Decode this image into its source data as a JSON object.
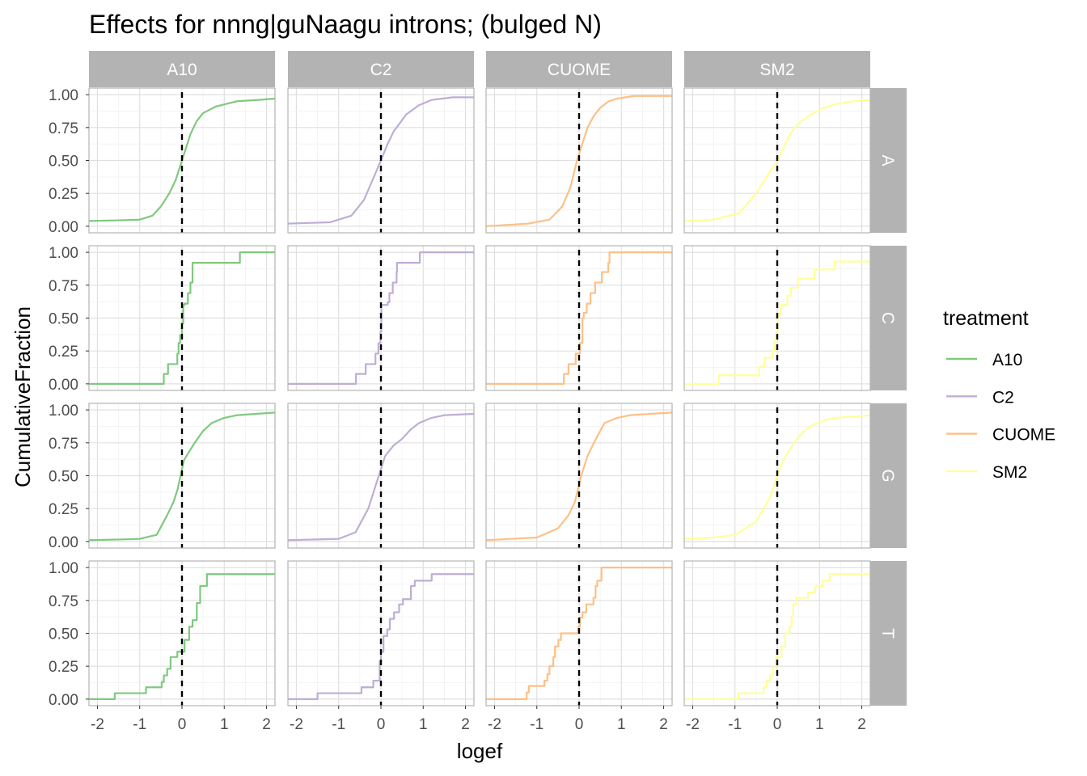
{
  "chart_data": {
    "type": "line",
    "title": "Effects for nnng|guNaagu introns; (bulged N)",
    "xlabel": "logef",
    "ylabel": "CumulativeFraction",
    "xlim": [
      -2.2,
      2.2
    ],
    "ylim": [
      -0.05,
      1.05
    ],
    "x_ticks": [
      -2,
      -1,
      0,
      1,
      2
    ],
    "x_tick_labels": [
      "-2",
      "-1",
      "0",
      "1",
      "2"
    ],
    "y_ticks": [
      0,
      0.25,
      0.5,
      0.75,
      1
    ],
    "y_tick_labels": [
      "0.00",
      "0.25",
      "0.50",
      "0.75",
      "1.00"
    ],
    "grid": true,
    "reference_line": {
      "x": 0,
      "style": "dashed",
      "color": "#000000"
    },
    "facet_columns": [
      "A10",
      "C2",
      "CUOME",
      "SM2"
    ],
    "facet_rows": [
      "A",
      "C",
      "G",
      "T"
    ],
    "legend": {
      "title": "treatment",
      "position": "right",
      "entries": [
        {
          "name": "A10",
          "color": "#7fc97f"
        },
        {
          "name": "C2",
          "color": "#beaed4"
        },
        {
          "name": "CUOME",
          "color": "#fdc086"
        },
        {
          "name": "SM2",
          "color": "#ffff99"
        }
      ]
    },
    "panels": [
      {
        "row": "A",
        "col": "A10",
        "kind": "smooth",
        "points": [
          [
            -2.2,
            0.04
          ],
          [
            -1.5,
            0.045
          ],
          [
            -1,
            0.05
          ],
          [
            -0.7,
            0.08
          ],
          [
            -0.5,
            0.15
          ],
          [
            -0.3,
            0.25
          ],
          [
            -0.15,
            0.35
          ],
          [
            0,
            0.5
          ],
          [
            0.1,
            0.6
          ],
          [
            0.2,
            0.7
          ],
          [
            0.35,
            0.8
          ],
          [
            0.5,
            0.86
          ],
          [
            0.8,
            0.91
          ],
          [
            1.3,
            0.95
          ],
          [
            1.8,
            0.96
          ],
          [
            2.2,
            0.97
          ]
        ]
      },
      {
        "row": "A",
        "col": "C2",
        "kind": "smooth",
        "points": [
          [
            -2.2,
            0.02
          ],
          [
            -1.2,
            0.03
          ],
          [
            -0.7,
            0.08
          ],
          [
            -0.4,
            0.2
          ],
          [
            -0.2,
            0.35
          ],
          [
            0,
            0.5
          ],
          [
            0.15,
            0.62
          ],
          [
            0.3,
            0.72
          ],
          [
            0.6,
            0.85
          ],
          [
            0.9,
            0.92
          ],
          [
            1.2,
            0.96
          ],
          [
            1.7,
            0.98
          ],
          [
            2.2,
            0.98
          ]
        ]
      },
      {
        "row": "A",
        "col": "CUOME",
        "kind": "smooth",
        "points": [
          [
            -2.2,
            0.0
          ],
          [
            -1.2,
            0.02
          ],
          [
            -0.7,
            0.05
          ],
          [
            -0.4,
            0.15
          ],
          [
            -0.2,
            0.3
          ],
          [
            -0.05,
            0.5
          ],
          [
            0.1,
            0.65
          ],
          [
            0.2,
            0.75
          ],
          [
            0.35,
            0.84
          ],
          [
            0.5,
            0.9
          ],
          [
            0.7,
            0.95
          ],
          [
            0.9,
            0.97
          ],
          [
            1.3,
            0.99
          ],
          [
            2.2,
            0.99
          ]
        ]
      },
      {
        "row": "A",
        "col": "SM2",
        "kind": "smooth",
        "points": [
          [
            -2.2,
            0.04
          ],
          [
            -1.5,
            0.05
          ],
          [
            -0.9,
            0.1
          ],
          [
            -0.5,
            0.25
          ],
          [
            -0.2,
            0.4
          ],
          [
            0,
            0.5
          ],
          [
            0.15,
            0.6
          ],
          [
            0.3,
            0.7
          ],
          [
            0.5,
            0.78
          ],
          [
            0.8,
            0.85
          ],
          [
            1.1,
            0.9
          ],
          [
            1.4,
            0.93
          ],
          [
            1.8,
            0.95
          ],
          [
            2.2,
            0.96
          ]
        ]
      },
      {
        "row": "C",
        "col": "A10",
        "kind": "step",
        "points": [
          [
            -2.2,
            0
          ],
          [
            -0.43,
            0.075
          ],
          [
            -0.33,
            0.15
          ],
          [
            -0.11,
            0.23
          ],
          [
            -0.08,
            0.31
          ],
          [
            -0.045,
            0.37
          ],
          [
            0,
            0.46
          ],
          [
            0.03,
            0.6
          ],
          [
            0.06,
            0.61
          ],
          [
            0.14,
            0.69
          ],
          [
            0.2,
            0.77
          ],
          [
            0.25,
            0.92
          ],
          [
            1.37,
            1.0
          ],
          [
            2.2,
            1.0
          ]
        ]
      },
      {
        "row": "C",
        "col": "C2",
        "kind": "step",
        "points": [
          [
            -2.2,
            0
          ],
          [
            -0.59,
            0.075
          ],
          [
            -0.36,
            0.15
          ],
          [
            -0.13,
            0.23
          ],
          [
            -0.06,
            0.31
          ],
          [
            -0.01,
            0.4
          ],
          [
            0.01,
            0.6
          ],
          [
            0.16,
            0.62
          ],
          [
            0.2,
            0.69
          ],
          [
            0.28,
            0.77
          ],
          [
            0.37,
            0.85
          ],
          [
            0.38,
            0.92
          ],
          [
            0.92,
            1.0
          ],
          [
            2.2,
            1.0
          ]
        ]
      },
      {
        "row": "C",
        "col": "CUOME",
        "kind": "step",
        "points": [
          [
            -2.2,
            0
          ],
          [
            -0.36,
            0.075
          ],
          [
            -0.25,
            0.15
          ],
          [
            -0.08,
            0.23
          ],
          [
            0.02,
            0.31
          ],
          [
            0.08,
            0.5
          ],
          [
            0.11,
            0.54
          ],
          [
            0.18,
            0.61
          ],
          [
            0.27,
            0.69
          ],
          [
            0.38,
            0.77
          ],
          [
            0.54,
            0.85
          ],
          [
            0.69,
            0.92
          ],
          [
            0.72,
            1.0
          ],
          [
            2.2,
            1.0
          ]
        ]
      },
      {
        "row": "C",
        "col": "SM2",
        "kind": "step",
        "points": [
          [
            -2.2,
            0
          ],
          [
            -1.38,
            0.065
          ],
          [
            -0.43,
            0.13
          ],
          [
            -0.3,
            0.2
          ],
          [
            -0.11,
            0.25
          ],
          [
            -0.06,
            0.33
          ],
          [
            -0.02,
            0.4
          ],
          [
            0.01,
            0.53
          ],
          [
            0.08,
            0.6
          ],
          [
            0.24,
            0.67
          ],
          [
            0.32,
            0.73
          ],
          [
            0.49,
            0.8
          ],
          [
            0.88,
            0.87
          ],
          [
            1.36,
            0.93
          ],
          [
            2.2,
            0.93
          ]
        ]
      },
      {
        "row": "G",
        "col": "A10",
        "kind": "smooth",
        "points": [
          [
            -2.2,
            0.01
          ],
          [
            -1.5,
            0.015
          ],
          [
            -1,
            0.02
          ],
          [
            -0.6,
            0.05
          ],
          [
            -0.35,
            0.2
          ],
          [
            -0.2,
            0.3
          ],
          [
            -0.1,
            0.4
          ],
          [
            0,
            0.55
          ],
          [
            0.05,
            0.62
          ],
          [
            0.3,
            0.75
          ],
          [
            0.5,
            0.84
          ],
          [
            0.7,
            0.9
          ],
          [
            1.0,
            0.94
          ],
          [
            1.3,
            0.96
          ],
          [
            2.2,
            0.98
          ]
        ]
      },
      {
        "row": "G",
        "col": "C2",
        "kind": "smooth",
        "points": [
          [
            -2.2,
            0.01
          ],
          [
            -1,
            0.02
          ],
          [
            -0.6,
            0.07
          ],
          [
            -0.3,
            0.25
          ],
          [
            -0.1,
            0.45
          ],
          [
            0.1,
            0.65
          ],
          [
            0.3,
            0.73
          ],
          [
            0.5,
            0.78
          ],
          [
            0.7,
            0.85
          ],
          [
            0.9,
            0.9
          ],
          [
            1.2,
            0.94
          ],
          [
            1.5,
            0.96
          ],
          [
            2.2,
            0.97
          ]
        ]
      },
      {
        "row": "G",
        "col": "CUOME",
        "kind": "smooth",
        "points": [
          [
            -2.2,
            0.01
          ],
          [
            -1,
            0.03
          ],
          [
            -0.5,
            0.1
          ],
          [
            -0.25,
            0.2
          ],
          [
            -0.1,
            0.3
          ],
          [
            0.05,
            0.5
          ],
          [
            0.2,
            0.65
          ],
          [
            0.35,
            0.75
          ],
          [
            0.6,
            0.9
          ],
          [
            0.9,
            0.94
          ],
          [
            1.2,
            0.96
          ],
          [
            2.2,
            0.98
          ]
        ]
      },
      {
        "row": "G",
        "col": "SM2",
        "kind": "smooth",
        "points": [
          [
            -2.2,
            0.02
          ],
          [
            -1.5,
            0.03
          ],
          [
            -1.0,
            0.05
          ],
          [
            -0.5,
            0.15
          ],
          [
            -0.15,
            0.35
          ],
          [
            0.05,
            0.55
          ],
          [
            0.2,
            0.65
          ],
          [
            0.4,
            0.75
          ],
          [
            0.6,
            0.83
          ],
          [
            0.8,
            0.88
          ],
          [
            1.1,
            0.92
          ],
          [
            1.4,
            0.94
          ],
          [
            2.2,
            0.96
          ]
        ]
      },
      {
        "row": "T",
        "col": "A10",
        "kind": "step",
        "points": [
          [
            -2.2,
            0
          ],
          [
            -1.59,
            0.045
          ],
          [
            -0.85,
            0.09
          ],
          [
            -0.48,
            0.13
          ],
          [
            -0.43,
            0.18
          ],
          [
            -0.35,
            0.23
          ],
          [
            -0.27,
            0.32
          ],
          [
            -0.11,
            0.36
          ],
          [
            0.06,
            0.45
          ],
          [
            0.17,
            0.55
          ],
          [
            0.25,
            0.6
          ],
          [
            0.35,
            0.73
          ],
          [
            0.43,
            0.86
          ],
          [
            0.59,
            0.95
          ],
          [
            2.2,
            0.95
          ]
        ]
      },
      {
        "row": "T",
        "col": "C2",
        "kind": "step",
        "points": [
          [
            -2.2,
            0
          ],
          [
            -1.5,
            0.045
          ],
          [
            -0.46,
            0.09
          ],
          [
            -0.18,
            0.14
          ],
          [
            -0.03,
            0.29
          ],
          [
            0.0,
            0.36
          ],
          [
            0.06,
            0.48
          ],
          [
            0.15,
            0.53
          ],
          [
            0.21,
            0.61
          ],
          [
            0.31,
            0.66
          ],
          [
            0.43,
            0.72
          ],
          [
            0.52,
            0.76
          ],
          [
            0.71,
            0.86
          ],
          [
            0.8,
            0.9
          ],
          [
            1.2,
            0.95
          ],
          [
            2.2,
            0.95
          ]
        ]
      },
      {
        "row": "T",
        "col": "CUOME",
        "kind": "step",
        "points": [
          [
            -2.2,
            0
          ],
          [
            -1.24,
            0.05
          ],
          [
            -1.19,
            0.1
          ],
          [
            -0.82,
            0.14
          ],
          [
            -0.75,
            0.19
          ],
          [
            -0.7,
            0.25
          ],
          [
            -0.61,
            0.32
          ],
          [
            -0.57,
            0.4
          ],
          [
            -0.49,
            0.45
          ],
          [
            -0.43,
            0.5
          ],
          [
            -0.02,
            0.55
          ],
          [
            0.02,
            0.62
          ],
          [
            0.08,
            0.66
          ],
          [
            0.17,
            0.72
          ],
          [
            0.34,
            0.77
          ],
          [
            0.39,
            0.86
          ],
          [
            0.43,
            0.9
          ],
          [
            0.53,
            1.0
          ],
          [
            2.2,
            1.0
          ]
        ]
      },
      {
        "row": "T",
        "col": "SM2",
        "kind": "step",
        "points": [
          [
            -2.2,
            0
          ],
          [
            -0.92,
            0.045
          ],
          [
            -0.32,
            0.09
          ],
          [
            -0.25,
            0.14
          ],
          [
            -0.17,
            0.18
          ],
          [
            -0.1,
            0.24
          ],
          [
            -0.03,
            0.32
          ],
          [
            0.1,
            0.4
          ],
          [
            0.19,
            0.5
          ],
          [
            0.29,
            0.55
          ],
          [
            0.34,
            0.63
          ],
          [
            0.38,
            0.72
          ],
          [
            0.45,
            0.77
          ],
          [
            0.73,
            0.81
          ],
          [
            0.9,
            0.86
          ],
          [
            1.08,
            0.9
          ],
          [
            1.24,
            0.95
          ],
          [
            2.2,
            0.95
          ]
        ]
      }
    ]
  }
}
